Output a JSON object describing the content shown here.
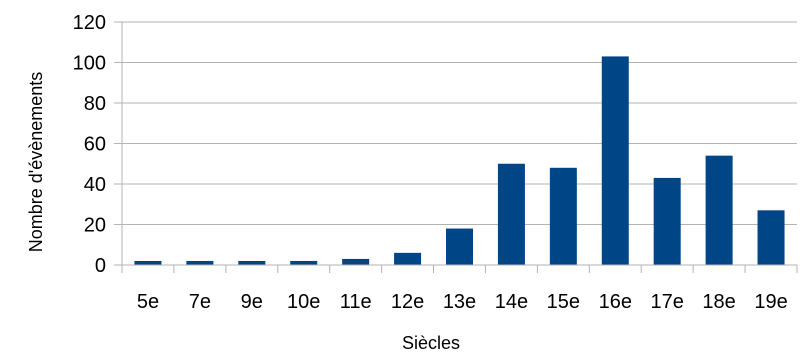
{
  "chart_data": {
    "type": "bar",
    "categories": [
      "5e",
      "7e",
      "9e",
      "10e",
      "11e",
      "12e",
      "13e",
      "14e",
      "15e",
      "16e",
      "17e",
      "18e",
      "19e"
    ],
    "values": [
      2,
      2,
      2,
      2,
      3,
      6,
      18,
      50,
      48,
      103,
      43,
      54,
      27
    ],
    "xlabel": "Siècles",
    "ylabel": "Nombre d'évènements",
    "ylim": [
      0,
      120
    ],
    "yticks": [
      0,
      20,
      40,
      60,
      80,
      100,
      120
    ],
    "grid": true,
    "legend": "none",
    "bar_color": "#004586",
    "grid_color": "#b3b3b3"
  }
}
